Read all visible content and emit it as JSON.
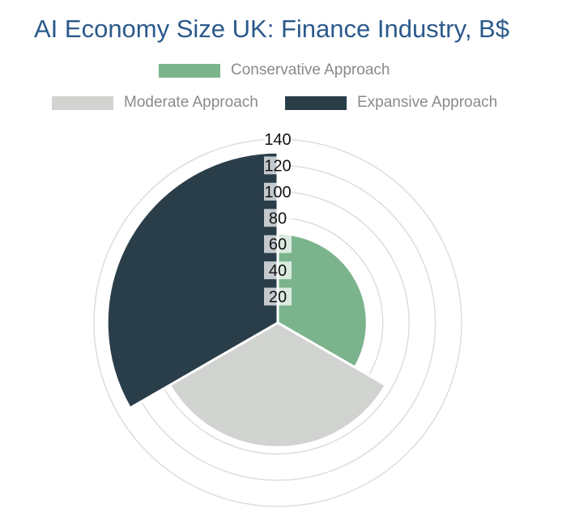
{
  "chart_data": {
    "type": "polar-area",
    "title": "AI Economy Size UK: Finance Industry, B$",
    "series": [
      {
        "name": "Conservative Approach",
        "value": 68,
        "color": "#7bb38d"
      },
      {
        "name": "Moderate Approach",
        "value": 95,
        "color": "#d1d3d0"
      },
      {
        "name": "Expansive Approach",
        "value": 130,
        "color": "#2a3e4a"
      }
    ],
    "radial_axis": {
      "range": [
        0,
        140
      ],
      "ticks": [
        "20",
        "40",
        "60",
        "80",
        "100",
        "120",
        "140"
      ]
    },
    "legend_position": "top",
    "grid": true
  }
}
